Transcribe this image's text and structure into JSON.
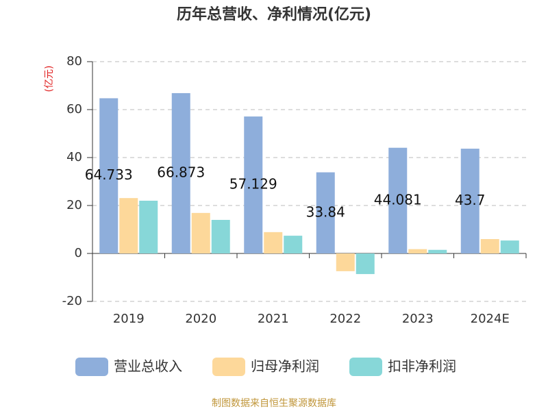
{
  "chart_data": {
    "type": "bar",
    "title": "历年总营收、净利情况(亿元)",
    "y_label": "(亿元)",
    "source": "制图数据来自恒生聚源数据库",
    "categories": [
      "2019",
      "2020",
      "2021",
      "2022",
      "2023",
      "2024E"
    ],
    "series": [
      {
        "name": "营业总收入",
        "color": "#8eaedb",
        "values": [
          64.733,
          66.873,
          57.129,
          33.84,
          44.081,
          43.7
        ],
        "show_labels": true
      },
      {
        "name": "归母净利润",
        "color": "#fdd89a",
        "values": [
          23.1,
          16.9,
          8.9,
          -7.4,
          1.8,
          6.0
        ],
        "show_labels": false
      },
      {
        "name": "扣非净利润",
        "color": "#87d7d8",
        "values": [
          22.0,
          14.0,
          7.4,
          -8.6,
          1.5,
          5.4
        ],
        "show_labels": false
      }
    ],
    "ylim": [
      -20,
      80
    ],
    "yticks": [
      -20,
      0,
      20,
      40,
      60,
      80
    ],
    "grid": true
  }
}
